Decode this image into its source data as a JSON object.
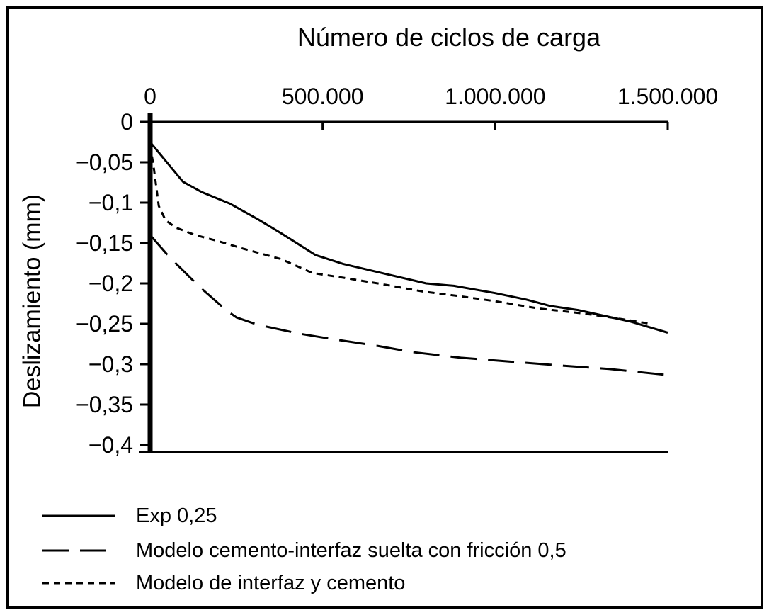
{
  "figure": {
    "background": "#ffffff",
    "line_color": "#000000"
  },
  "chart_data": {
    "type": "line",
    "title": "Número de ciclos de carga",
    "xlabel": "Número de ciclos de carga",
    "ylabel": "Deslizamiento (mm)",
    "xlim": [
      0,
      1500000
    ],
    "ylim": [
      -0.4,
      0
    ],
    "grid": false,
    "legend_position": "bottom-left",
    "x_ticks": [
      {
        "value": 0,
        "label": "0"
      },
      {
        "value": 500000,
        "label": "500.000"
      },
      {
        "value": 1000000,
        "label": "1.000.000"
      },
      {
        "value": 1500000,
        "label": "1.500.000"
      }
    ],
    "y_ticks": [
      {
        "value": 0,
        "label": "0"
      },
      {
        "value": -0.05,
        "label": "−0,05"
      },
      {
        "value": -0.1,
        "label": "−0,1"
      },
      {
        "value": -0.15,
        "label": "−0,15"
      },
      {
        "value": -0.2,
        "label": "−0,2"
      },
      {
        "value": -0.25,
        "label": "−0,25"
      },
      {
        "value": -0.3,
        "label": "−0,3"
      },
      {
        "value": -0.35,
        "label": "−0,35"
      },
      {
        "value": -0.4,
        "label": "−0,4"
      }
    ],
    "series": [
      {
        "name": "Exp 0,25",
        "style": "solid",
        "dash": null,
        "points": [
          [
            0,
            -0.025
          ],
          [
            95000,
            -0.074
          ],
          [
            150000,
            -0.087
          ],
          [
            230000,
            -0.101
          ],
          [
            310000,
            -0.12
          ],
          [
            380000,
            -0.138
          ],
          [
            480000,
            -0.165
          ],
          [
            560000,
            -0.176
          ],
          [
            680000,
            -0.188
          ],
          [
            800000,
            -0.2
          ],
          [
            880000,
            -0.203
          ],
          [
            1000000,
            -0.212
          ],
          [
            1090000,
            -0.22
          ],
          [
            1160000,
            -0.228
          ],
          [
            1240000,
            -0.233
          ],
          [
            1390000,
            -0.247
          ],
          [
            1500000,
            -0.261
          ]
        ]
      },
      {
        "name": "Modelo cemento-interfaz suelta con fricción 0,5",
        "style": "long-dash",
        "dash": "37 16",
        "points": [
          [
            0,
            -0.14
          ],
          [
            55000,
            -0.167
          ],
          [
            100000,
            -0.186
          ],
          [
            140000,
            -0.203
          ],
          [
            220000,
            -0.233
          ],
          [
            250000,
            -0.242
          ],
          [
            310000,
            -0.251
          ],
          [
            430000,
            -0.262
          ],
          [
            530000,
            -0.269
          ],
          [
            655000,
            -0.277
          ],
          [
            760000,
            -0.285
          ],
          [
            900000,
            -0.292
          ],
          [
            1050000,
            -0.297
          ],
          [
            1200000,
            -0.302
          ],
          [
            1330000,
            -0.306
          ],
          [
            1490000,
            -0.313
          ]
        ]
      },
      {
        "name": "Modelo de interfaz y cemento",
        "style": "short-dash",
        "dash": "9 7",
        "points": [
          [
            0,
            -0.029
          ],
          [
            10000,
            -0.055
          ],
          [
            25000,
            -0.104
          ],
          [
            45000,
            -0.122
          ],
          [
            75000,
            -0.131
          ],
          [
            130000,
            -0.14
          ],
          [
            200000,
            -0.148
          ],
          [
            270000,
            -0.157
          ],
          [
            380000,
            -0.17
          ],
          [
            470000,
            -0.187
          ],
          [
            560000,
            -0.193
          ],
          [
            660000,
            -0.2
          ],
          [
            790000,
            -0.21
          ],
          [
            900000,
            -0.216
          ],
          [
            1000000,
            -0.222
          ],
          [
            1125000,
            -0.231
          ],
          [
            1250000,
            -0.237
          ],
          [
            1350000,
            -0.243
          ],
          [
            1450000,
            -0.25
          ]
        ]
      }
    ]
  }
}
